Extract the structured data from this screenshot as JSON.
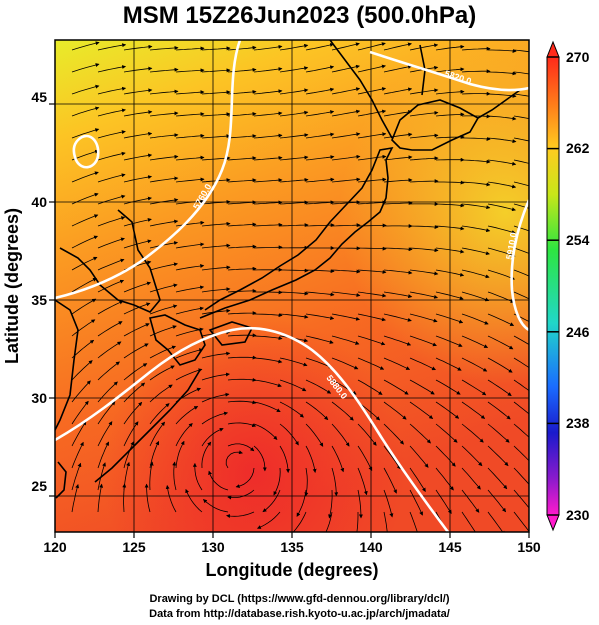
{
  "title": "MSM 15Z26Jun2023 (500.0hPa)",
  "map": {
    "xlabel": "Longitude (degrees)",
    "ylabel": "Latitude  (degrees)",
    "xlim": [
      120,
      150
    ],
    "ylim": [
      22.5,
      47.8
    ],
    "x_ticks": [
      "120",
      "125",
      "130",
      "135",
      "140",
      "145",
      "150"
    ],
    "y_ticks": [
      "25",
      "30",
      "35",
      "40",
      "45"
    ],
    "contour_labels": [
      "5760.0",
      "5820.0",
      "5880.0",
      "5910.0"
    ]
  },
  "colorbar": {
    "min": 230,
    "max": 270,
    "tick_labels": [
      "270",
      "262",
      "254",
      "246",
      "238",
      "230"
    ],
    "colors": [
      "#ff2a1a",
      "#ff7a1a",
      "#ffcc20",
      "#c8e619",
      "#2ee640",
      "#21d7c8",
      "#1a6cff",
      "#1a1acc",
      "#8a1acc",
      "#ff1acc"
    ]
  },
  "footer": {
    "line1": "Drawing by DCL (https://www.gfd-dennou.org/library/dcl/)",
    "line2": "Data from http://database.rish.kyoto-u.ac.jp/arch/jmadata/"
  }
}
